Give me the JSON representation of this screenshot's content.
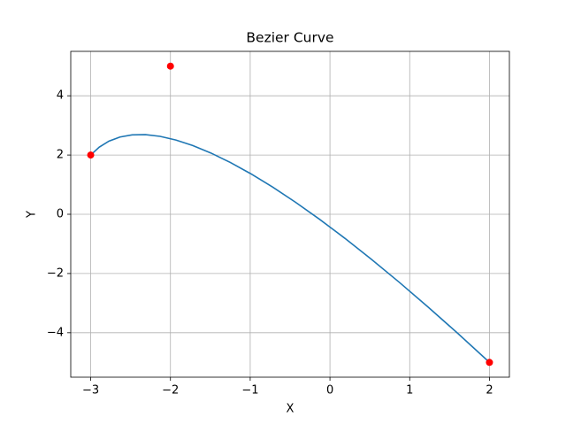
{
  "chart_data": {
    "type": "line",
    "title": "Bezier Curve",
    "x_label": "X",
    "y_label": "Y",
    "xlim": [
      -3.25,
      2.25
    ],
    "ylim": [
      -5.5,
      5.5
    ],
    "grid": true,
    "xticks": [
      {
        "value": -3,
        "label": "−3"
      },
      {
        "value": -2,
        "label": "−2"
      },
      {
        "value": -1,
        "label": "−1"
      },
      0,
      1,
      2
    ],
    "yticks": [
      {
        "value": -4,
        "label": "−4"
      },
      {
        "value": -2,
        "label": "−2"
      },
      0,
      2,
      4
    ],
    "series": [
      {
        "type": "line",
        "color": "#1f77b4",
        "x": [
          -3,
          -2.8925,
          -2.77,
          -2.6325,
          -2.48,
          -2.3125,
          -2.13,
          -1.9325,
          -1.72,
          -1.4925,
          -1.25,
          -0.9925,
          -0.72,
          -0.4325,
          -0.13,
          0.1875,
          0.52,
          0.8675,
          1.23,
          1.6075,
          2
        ],
        "values": [
          2,
          2.2675,
          2.47,
          2.6075,
          2.68,
          2.6875,
          2.63,
          2.5075,
          2.32,
          2.0675,
          1.75,
          1.3675,
          0.92,
          0.4075,
          -0.17,
          -0.8125,
          -1.52,
          -2.2925,
          -3.13,
          -4.0325,
          -5
        ]
      },
      {
        "type": "scatter",
        "color": "#ff0000",
        "x": [
          -3,
          -2,
          2
        ],
        "values": [
          2,
          5,
          -5
        ]
      }
    ]
  }
}
